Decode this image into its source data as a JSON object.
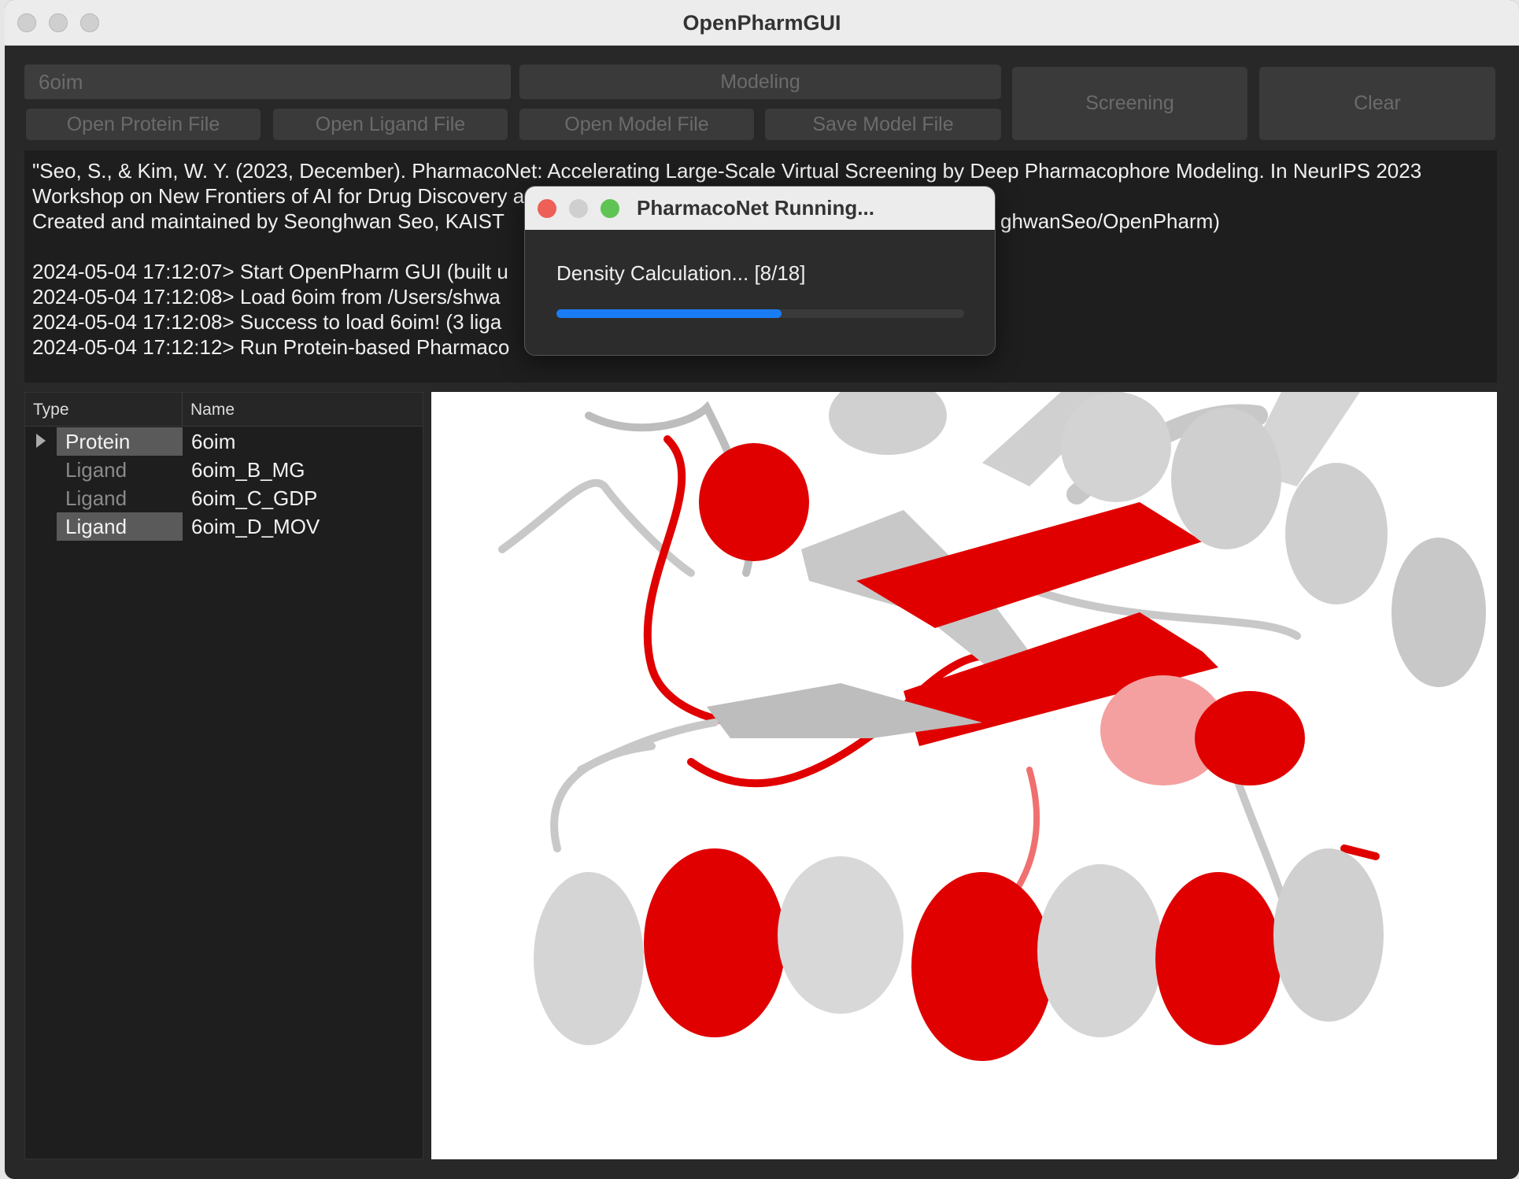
{
  "window": {
    "title": "OpenPharmGUI"
  },
  "toolbar": {
    "pdb_field": "6oim",
    "modeling": "Modeling",
    "screening": "Screening",
    "clear": "Clear",
    "open_protein": "Open Protein File",
    "open_ligand": "Open Ligand File",
    "open_model": "Open Model File",
    "save_model": "Save Model File"
  },
  "log": {
    "lines": [
      "\"Seo, S., & Kim, W. Y. (2023, December). PharmacoNet: Accelerating Large-Scale Virtual Screening by Deep Pharmacophore Modeling. In NeurIPS 2023",
      "Workshop on New Frontiers of AI for Drug Discovery and Development.\"",
      "Created and maintained by Seonghwan Seo, KAIST",
      "2024-05-04 17:12:07> Start OpenPharm GUI (built u",
      "2024-05-04 17:12:08> Load 6oim from /Users/shwa",
      "2024-05-04 17:12:08> Success to load 6oim! (3 liga",
      "2024-05-04 17:12:12> Run Protein-based Pharmaco"
    ],
    "fragment": "ghwanSeo/OpenPharm)"
  },
  "tree": {
    "headers": [
      "Type",
      "Name"
    ],
    "rows": [
      [
        "Protein",
        "6oim"
      ],
      [
        "Ligand",
        "6oim_B_MG"
      ],
      [
        "Ligand",
        "6oim_C_GDP"
      ],
      [
        "Ligand",
        "6oim_D_MOV"
      ]
    ]
  },
  "dialog": {
    "title": "PharmacoNet Running...",
    "message": "Density Calculation... [8/18]"
  }
}
